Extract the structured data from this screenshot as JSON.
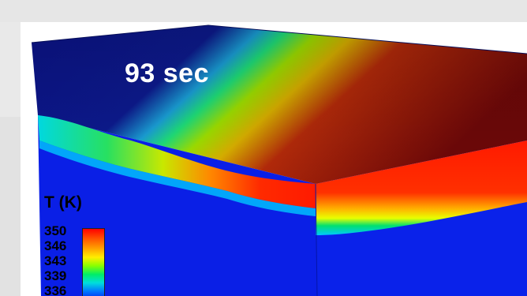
{
  "annotation": {
    "time_label": "93 sec"
  },
  "legend": {
    "title": "T (K)",
    "ticks": [
      "350",
      "346",
      "343",
      "339",
      "336"
    ]
  },
  "colors": {
    "cold": "#0a1fe6",
    "top_cold": "#0b138a",
    "hot_top": "#7a0a0a",
    "hot_side": "#ff1a00",
    "mid_yellow": "#f2ff00",
    "mid_green": "#00e05a",
    "mid_cyan": "#00d8e0"
  }
}
